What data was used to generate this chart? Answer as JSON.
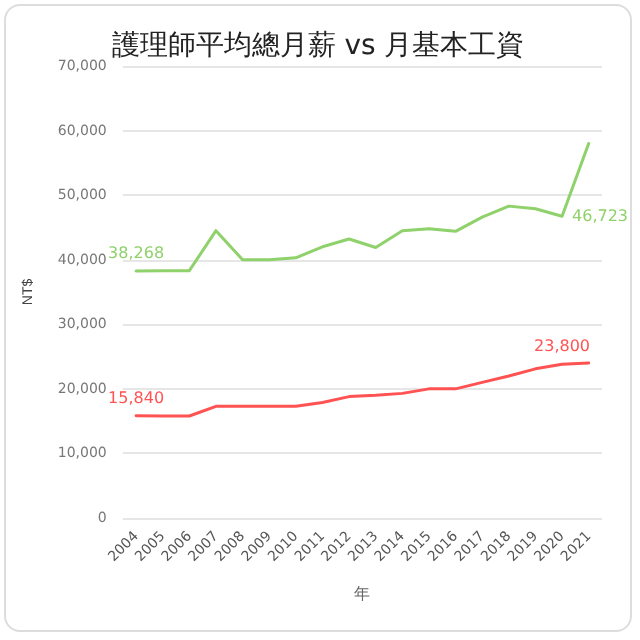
{
  "chart_data": {
    "type": "line",
    "title": "護理師平均總月薪 vs 月基本工資",
    "xlabel": "年",
    "ylabel": "NT$",
    "categories": [
      "2004",
      "2005",
      "2006",
      "2007",
      "2008",
      "2009",
      "2010",
      "2011",
      "2012",
      "2013",
      "2014",
      "2015",
      "2016",
      "2017",
      "2018",
      "2019",
      "2020",
      "2021"
    ],
    "series": [
      {
        "color": "#8fd16a",
        "values": [
          38268,
          38300,
          38300,
          44500,
          40000,
          40000,
          40300,
          42000,
          43200,
          41900,
          44500,
          44800,
          44400,
          46600,
          48300,
          47900,
          46723,
          58000
        ],
        "value_labels": [
          "38,268",
          null,
          null,
          null,
          null,
          null,
          null,
          null,
          null,
          null,
          null,
          null,
          null,
          null,
          null,
          null,
          "46,723",
          null
        ]
      },
      {
        "color": "#ff5252",
        "values": [
          15840,
          15800,
          15800,
          17300,
          17300,
          17300,
          17300,
          17900,
          18800,
          19000,
          19300,
          20000,
          20000,
          21000,
          22000,
          23100,
          23800,
          24000
        ],
        "value_labels": [
          "15,840",
          null,
          null,
          null,
          null,
          null,
          null,
          null,
          null,
          null,
          null,
          null,
          null,
          null,
          null,
          null,
          "23,800",
          null
        ]
      }
    ],
    "ylim": [
      0,
      70000
    ],
    "yticks": [
      0,
      {
        "value": 10000,
        "label": "10,000"
      },
      {
        "value": 20000,
        "label": "20,000"
      },
      {
        "value": 30000,
        "label": "30,000"
      },
      {
        "value": 40000,
        "label": "40,000"
      },
      {
        "value": 50000,
        "label": "50,000"
      },
      {
        "value": 60000,
        "label": "60,000"
      },
      {
        "value": 70000,
        "label": "70,000"
      }
    ],
    "grid": "y",
    "marker": "none",
    "line_style": "solid"
  }
}
